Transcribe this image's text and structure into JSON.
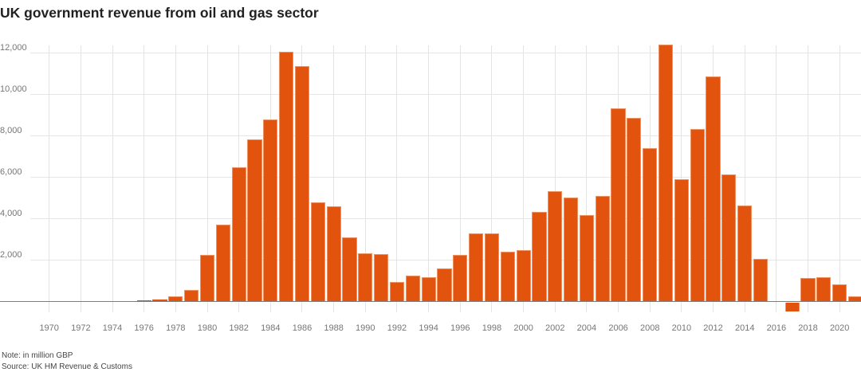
{
  "title": "UK government revenue from oil and gas sector",
  "note": "Note: in million GBP",
  "source": "Source: UK HM Revenue & Customs",
  "colors": {
    "bar": "#e2530d",
    "bar_edge": "#ef9161",
    "grid": "#e4e4e4",
    "axis_line": "#7d7d7d",
    "tick_label": "#767676",
    "title_text": "#212121",
    "note_text": "#454545"
  },
  "chart_data": {
    "type": "bar",
    "title": "UK government revenue from oil and gas sector",
    "unit": "million GBP",
    "xlabel": "",
    "ylabel": "",
    "x": [
      1970,
      1971,
      1972,
      1973,
      1974,
      1975,
      1976,
      1977,
      1978,
      1979,
      1980,
      1981,
      1982,
      1983,
      1984,
      1985,
      1986,
      1987,
      1988,
      1989,
      1990,
      1991,
      1992,
      1993,
      1994,
      1995,
      1996,
      1997,
      1998,
      1999,
      2000,
      2001,
      2002,
      2003,
      2004,
      2005,
      2006,
      2007,
      2008,
      2009,
      2010,
      2011,
      2012,
      2013,
      2014,
      2015,
      2016,
      2017,
      2018,
      2019,
      2020,
      2021
    ],
    "values": [
      0,
      0,
      0,
      0,
      10,
      20,
      30,
      90,
      240,
      560,
      2250,
      3700,
      6480,
      7810,
      8760,
      12040,
      11350,
      4760,
      4570,
      3090,
      2300,
      2270,
      920,
      1240,
      1150,
      1570,
      2230,
      3280,
      3270,
      2390,
      2480,
      4330,
      5320,
      5000,
      4150,
      5070,
      9310,
      8850,
      7390,
      12400,
      5880,
      8310,
      10870,
      6110,
      4640,
      2030,
      0,
      -450,
      1140,
      1170,
      810,
      230
    ],
    "yticks": [
      2000,
      4000,
      6000,
      8000,
      10000,
      12000
    ],
    "xticks": [
      1970,
      1972,
      1974,
      1976,
      1978,
      1980,
      1982,
      1984,
      1986,
      1988,
      1990,
      1992,
      1994,
      1996,
      1998,
      2000,
      2002,
      2004,
      2006,
      2008,
      2010,
      2012,
      2014,
      2016,
      2018,
      2020
    ],
    "ylim": [
      -600,
      12450
    ],
    "grid": "both",
    "legend": "none",
    "bar_color": "#e2530d"
  }
}
